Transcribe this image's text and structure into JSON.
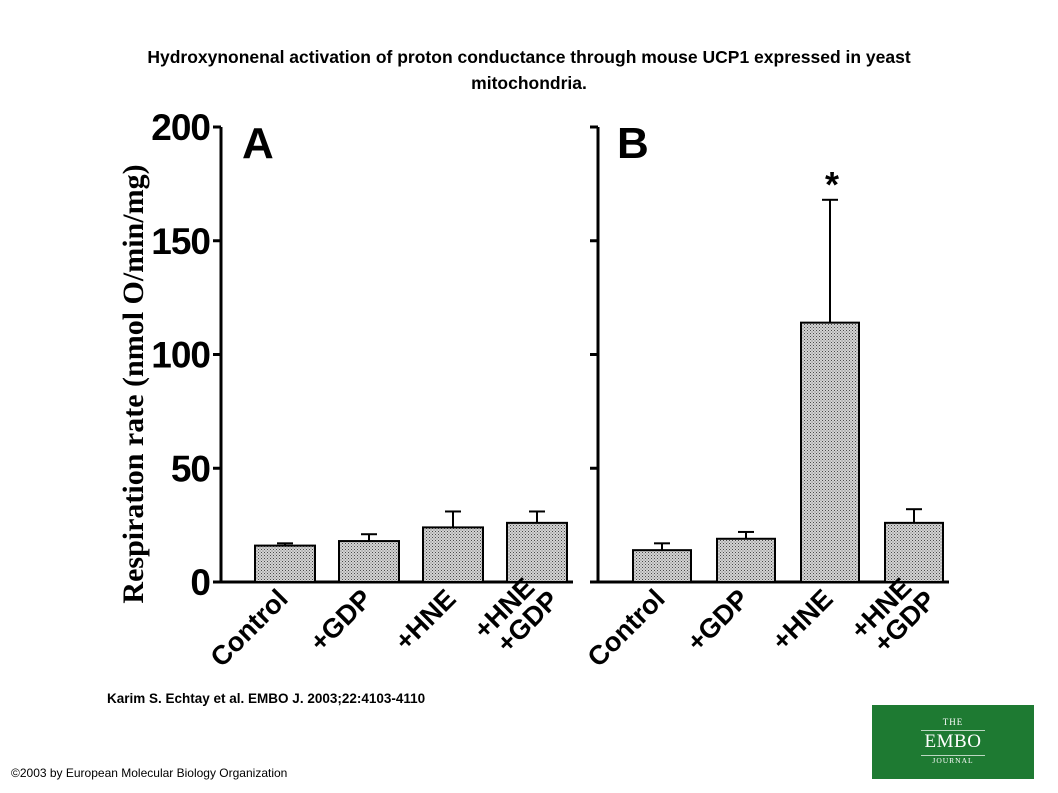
{
  "title": {
    "line1": "Hydroxynonenal activation of proton conductance through mouse UCP1 expressed in yeast",
    "line2": "mitochondria."
  },
  "citation": "Karim S. Echtay et al. EMBO J. 2003;22:4103-4110",
  "copyright": "©2003 by European Molecular Biology Organization",
  "logo": {
    "line1": "THE",
    "line2": "EMBO",
    "line3": "JOURNAL"
  },
  "chart_data": {
    "type": "bar",
    "ylabel": "Respiration rate (nmol O/min/mg)",
    "ylim": [
      0,
      200
    ],
    "yticks": [
      "0",
      "50",
      "100",
      "150",
      "200"
    ],
    "bar_fill": "crosshatch gray",
    "panels": [
      {
        "label": "A",
        "categories": [
          "Control",
          "+GDP",
          "+HNE",
          "+HNE\n+GDP"
        ],
        "values": [
          16,
          18,
          24,
          26
        ],
        "errors": [
          1,
          3,
          7,
          5
        ],
        "annotations": [
          "",
          "",
          "",
          ""
        ]
      },
      {
        "label": "B",
        "categories": [
          "Control",
          "+GDP",
          "+HNE",
          "+HNE\n+GDP"
        ],
        "values": [
          14,
          19,
          114,
          26
        ],
        "errors": [
          3,
          3,
          54,
          6
        ],
        "annotations": [
          "",
          "",
          "*",
          ""
        ]
      }
    ]
  }
}
